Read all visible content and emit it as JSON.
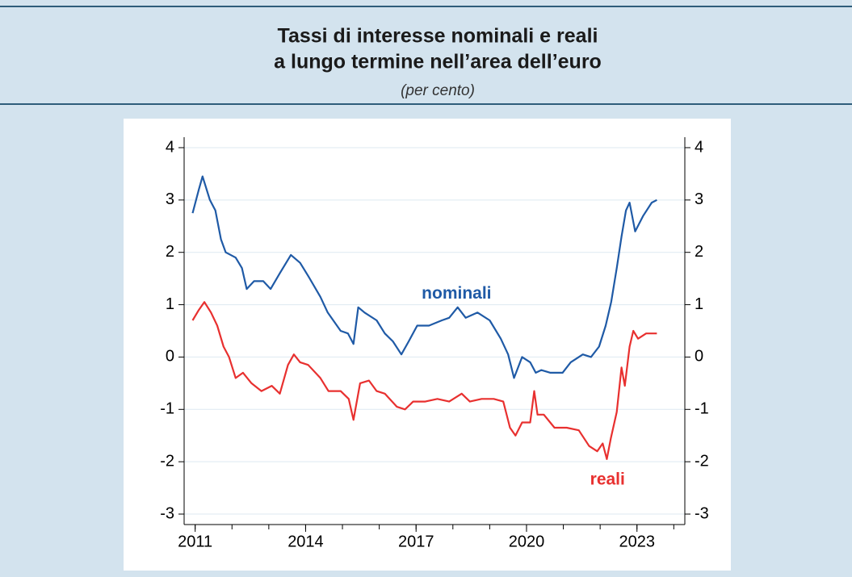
{
  "chart_data": {
    "type": "line",
    "title": [
      "Tassi di interesse nominali e reali",
      "a lungo termine nell’area dell’euro"
    ],
    "subtitle": "(per cento)",
    "xlim": [
      2010.7,
      2024.3
    ],
    "xticks": [
      2011,
      2014,
      2017,
      2020,
      2023
    ],
    "xminor_ticks": [
      2011,
      2012,
      2013,
      2014,
      2015,
      2016,
      2017,
      2018,
      2019,
      2020,
      2021,
      2022,
      2023,
      2024
    ],
    "ylim": [
      -3.2,
      4.2
    ],
    "yticks": [
      -3,
      -2,
      -1,
      0,
      1,
      2,
      3,
      4
    ],
    "grid": true,
    "right_axis_labels": true,
    "series": [
      {
        "name": "nominali",
        "color": "#1f5aa6",
        "label_at": [
          2018.1,
          1.2
        ],
        "x": [
          2010.93,
          2011.1,
          2011.2,
          2011.4,
          2011.55,
          2011.7,
          2011.83,
          2012.1,
          2012.27,
          2012.4,
          2012.6,
          2012.85,
          2013.05,
          2013.3,
          2013.6,
          2013.85,
          2014.07,
          2014.4,
          2014.6,
          2014.95,
          2015.15,
          2015.3,
          2015.43,
          2015.6,
          2015.93,
          2016.15,
          2016.37,
          2016.6,
          2016.8,
          2017.03,
          2017.35,
          2017.7,
          2017.9,
          2018.13,
          2018.35,
          2018.67,
          2019.0,
          2019.3,
          2019.5,
          2019.66,
          2019.88,
          2020.1,
          2020.25,
          2020.4,
          2020.65,
          2020.98,
          2021.2,
          2021.53,
          2021.75,
          2021.97,
          2022.15,
          2022.3,
          2022.45,
          2022.58,
          2022.7,
          2022.8,
          2022.95,
          2023.17,
          2023.4,
          2023.54
        ],
        "values": [
          2.75,
          3.2,
          3.45,
          3.0,
          2.8,
          2.25,
          2.0,
          1.9,
          1.7,
          1.3,
          1.45,
          1.45,
          1.3,
          1.6,
          1.95,
          1.8,
          1.55,
          1.15,
          0.85,
          0.5,
          0.45,
          0.25,
          0.95,
          0.85,
          0.7,
          0.45,
          0.3,
          0.05,
          0.3,
          0.6,
          0.6,
          0.7,
          0.75,
          0.95,
          0.75,
          0.85,
          0.7,
          0.35,
          0.05,
          -0.4,
          0.0,
          -0.1,
          -0.3,
          -0.25,
          -0.3,
          -0.3,
          -0.1,
          0.05,
          0.0,
          0.2,
          0.6,
          1.05,
          1.7,
          2.3,
          2.8,
          2.95,
          2.4,
          2.7,
          2.95,
          3.0
        ]
      },
      {
        "name": "reali",
        "color": "#e8302f",
        "label_at": [
          2022.2,
          -2.35
        ],
        "x": [
          2010.93,
          2011.1,
          2011.25,
          2011.43,
          2011.6,
          2011.77,
          2011.92,
          2012.1,
          2012.3,
          2012.53,
          2012.8,
          2013.08,
          2013.3,
          2013.52,
          2013.68,
          2013.85,
          2014.07,
          2014.4,
          2014.62,
          2014.95,
          2015.17,
          2015.3,
          2015.48,
          2015.72,
          2015.93,
          2016.15,
          2016.48,
          2016.7,
          2016.92,
          2017.25,
          2017.58,
          2017.9,
          2018.24,
          2018.46,
          2018.78,
          2019.11,
          2019.37,
          2019.55,
          2019.7,
          2019.88,
          2020.1,
          2020.21,
          2020.3,
          2020.47,
          2020.76,
          2021.09,
          2021.42,
          2021.7,
          2021.92,
          2022.07,
          2022.18,
          2022.29,
          2022.45,
          2022.58,
          2022.67,
          2022.8,
          2022.9,
          2023.03,
          2023.25,
          2023.54
        ],
        "values": [
          0.7,
          0.9,
          1.05,
          0.85,
          0.6,
          0.2,
          0.0,
          -0.4,
          -0.3,
          -0.5,
          -0.65,
          -0.55,
          -0.7,
          -0.15,
          0.05,
          -0.1,
          -0.15,
          -0.4,
          -0.65,
          -0.65,
          -0.8,
          -1.2,
          -0.5,
          -0.45,
          -0.65,
          -0.7,
          -0.95,
          -1.0,
          -0.85,
          -0.85,
          -0.8,
          -0.85,
          -0.7,
          -0.85,
          -0.8,
          -0.8,
          -0.85,
          -1.35,
          -1.5,
          -1.25,
          -1.25,
          -0.65,
          -1.1,
          -1.1,
          -1.35,
          -1.35,
          -1.4,
          -1.7,
          -1.8,
          -1.65,
          -1.95,
          -1.55,
          -1.05,
          -0.2,
          -0.55,
          0.2,
          0.5,
          0.35,
          0.45,
          0.45
        ]
      }
    ]
  }
}
